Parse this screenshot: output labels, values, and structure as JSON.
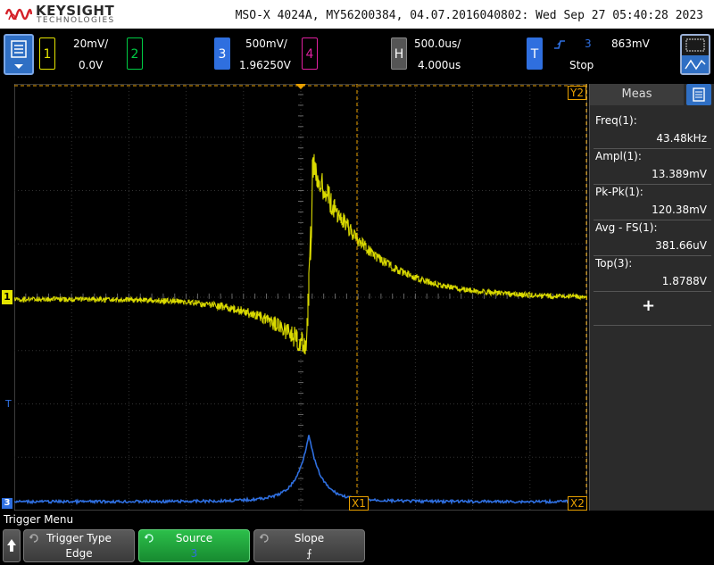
{
  "header": {
    "brand": "KEYSIGHT",
    "brand_sub": "TECHNOLOGIES",
    "title": "MSO-X 4024A, MY56200384, 04.07.2016040802: Wed Sep 27 05:40:28 2023"
  },
  "channels": [
    {
      "label": "1",
      "scale": "20mV/",
      "offset": "0.0V",
      "color": "#e5e500"
    },
    {
      "label": "2",
      "color": "#00cc44"
    },
    {
      "label": "3",
      "scale": "500mV/",
      "offset": "1.96250V",
      "color": "#2f6fdf"
    },
    {
      "label": "4",
      "color": "#e020a0"
    }
  ],
  "horizontal": {
    "label": "H",
    "scale": "500.0us/",
    "delay": "4.000us"
  },
  "trigger": {
    "label": "T",
    "source": "3",
    "level": "863mV",
    "state": "Stop"
  },
  "markers": {
    "y2": "Y2",
    "x1": "X1",
    "x2": "X2",
    "ch1_ground": "1",
    "trig_level": "T",
    "ch3_ground": "3"
  },
  "measurements": {
    "title": "Meas",
    "add_symbol": "+",
    "items": [
      {
        "name": "Freq(1):",
        "value": "43.48kHz"
      },
      {
        "name": "Ampl(1):",
        "value": "13.389mV"
      },
      {
        "name": "Pk-Pk(1):",
        "value": "120.38mV"
      },
      {
        "name": "Avg - FS(1):",
        "value": "381.66uV"
      },
      {
        "name": "Top(3):",
        "value": "1.8788V"
      }
    ]
  },
  "menu": {
    "title": "Trigger Menu",
    "softkeys": [
      {
        "label": "Trigger Type",
        "value": "Edge"
      },
      {
        "label": "Source",
        "value": "3"
      },
      {
        "label": "Slope",
        "value": "⨍"
      }
    ]
  },
  "colors": {
    "ch1": "#e5e500",
    "ch3": "#2f6fdf",
    "cursor": "#e8a000",
    "softkey_active": "#1fa63a"
  }
}
